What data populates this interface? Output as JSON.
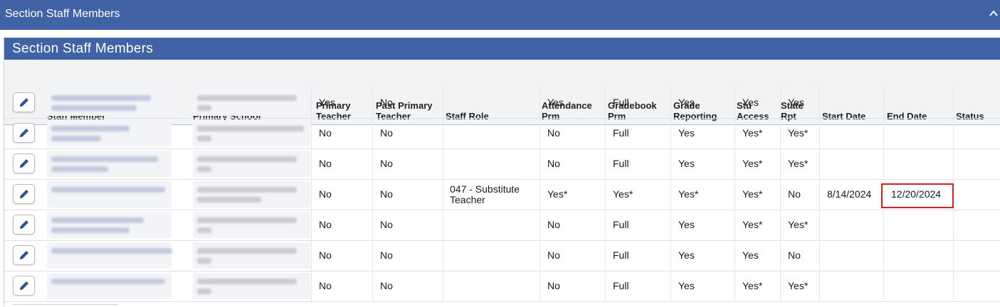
{
  "topbar": {
    "title": "Section Staff Members"
  },
  "panel": {
    "title": "Section Staff Members"
  },
  "columns": {
    "staff_member": [
      "Staff Member"
    ],
    "primary_school": [
      "Primary School"
    ],
    "primary_teacher": [
      "Primary",
      "Teacher"
    ],
    "past_primary_teacher": [
      "Past Primary",
      "Teacher"
    ],
    "staff_role": [
      "Staff Role"
    ],
    "attendance_prm": [
      "Attendance",
      "Prm"
    ],
    "gradebook_prm": [
      "Gradebook",
      "Prm"
    ],
    "grade_reporting": [
      "Grade",
      "Reporting"
    ],
    "stu_access": [
      "Stu",
      "Access"
    ],
    "state_rpt": [
      "State",
      "Rpt"
    ],
    "start_date": [
      "Start Date"
    ],
    "end_date": [
      "End Date"
    ],
    "status": [
      "Status"
    ]
  },
  "rows": [
    {
      "primary_teacher": "Yes",
      "past_primary_teacher": "No",
      "staff_role": "",
      "attendance_prm": "Yes",
      "gradebook_prm": "Full",
      "grade_reporting": "Yes",
      "stu_access": "Yes",
      "state_rpt": "Yes",
      "start_date": "",
      "end_date": "",
      "status": ""
    },
    {
      "primary_teacher": "No",
      "past_primary_teacher": "No",
      "staff_role": "",
      "attendance_prm": "No",
      "gradebook_prm": "Full",
      "grade_reporting": "Yes",
      "stu_access": "Yes*",
      "state_rpt": "Yes*",
      "start_date": "",
      "end_date": "",
      "status": ""
    },
    {
      "primary_teacher": "No",
      "past_primary_teacher": "No",
      "staff_role": "",
      "attendance_prm": "No",
      "gradebook_prm": "Full",
      "grade_reporting": "Yes",
      "stu_access": "Yes*",
      "state_rpt": "Yes*",
      "start_date": "",
      "end_date": "",
      "status": ""
    },
    {
      "primary_teacher": "No",
      "past_primary_teacher": "No",
      "staff_role": "047 - Substitute Teacher",
      "attendance_prm": "Yes*",
      "gradebook_prm": "Yes*",
      "grade_reporting": "Yes*",
      "stu_access": "Yes*",
      "state_rpt": "No",
      "start_date": "8/14/2024",
      "end_date": "12/20/2024",
      "status": ""
    },
    {
      "primary_teacher": "No",
      "past_primary_teacher": "No",
      "staff_role": "",
      "attendance_prm": "No",
      "gradebook_prm": "Full",
      "grade_reporting": "Yes",
      "stu_access": "Yes*",
      "state_rpt": "Yes*",
      "start_date": "",
      "end_date": "",
      "status": ""
    },
    {
      "primary_teacher": "No",
      "past_primary_teacher": "No",
      "staff_role": "",
      "attendance_prm": "No",
      "gradebook_prm": "Full",
      "grade_reporting": "Yes",
      "stu_access": "Yes",
      "state_rpt": "No",
      "start_date": "",
      "end_date": "",
      "status": ""
    },
    {
      "primary_teacher": "No",
      "past_primary_teacher": "No",
      "staff_role": "",
      "attendance_prm": "No",
      "gradebook_prm": "Full",
      "grade_reporting": "Yes",
      "stu_access": "Yes*",
      "state_rpt": "Yes*",
      "start_date": "",
      "end_date": "",
      "status": ""
    }
  ],
  "icons": {
    "edit": "pencil-icon",
    "collapse": "chevron-up-icon"
  },
  "colors": {
    "header_blue": "#4163a5",
    "highlight_red": "#d81f1f",
    "pencil_blue": "#2f5597"
  }
}
